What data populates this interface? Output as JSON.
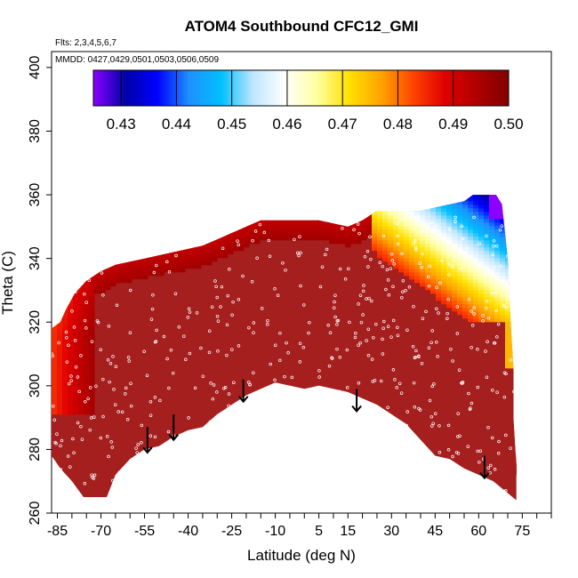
{
  "chart_data": {
    "type": "heatmap",
    "title": "ATOM4 Southbound CFC12_GMI",
    "flights_note": "Flts: 2,3,4,5,6,7",
    "dates_note": "MMDD: 0427,0429,0501,0503,0506,0509",
    "xlabel": "Latitude (deg N)",
    "ylabel": "Theta (C)",
    "xlim": [
      -87,
      85
    ],
    "ylim": [
      260,
      405
    ],
    "x_ticks": [
      -85,
      -70,
      -55,
      -40,
      -25,
      -10,
      5,
      15,
      30,
      45,
      60,
      75
    ],
    "y_ticks": [
      260,
      280,
      300,
      320,
      340,
      360,
      380,
      400
    ],
    "colorbar": {
      "min": 0.425,
      "max": 0.5,
      "tick_values": [
        0.43,
        0.44,
        0.45,
        0.46,
        0.47,
        0.48,
        0.49,
        0.5
      ],
      "tick_labels": [
        "0.43",
        "0.44",
        "0.45",
        "0.46",
        "0.47",
        "0.48",
        "0.49",
        "0.50"
      ],
      "colors": [
        "#8b00ff",
        "#0000a8",
        "#0000ff",
        "#1e90ff",
        "#00bfff",
        "#bfe6ff",
        "#ffffff",
        "#ffffa0",
        "#ffe000",
        "#ffa500",
        "#ff4500",
        "#e00000",
        "#b00000",
        "#800000"
      ]
    },
    "background_value": 0.498,
    "top_envelope": [
      [
        -87,
        318
      ],
      [
        -84,
        320
      ],
      [
        -82,
        324
      ],
      [
        -79,
        329
      ],
      [
        -75,
        333
      ],
      [
        -70,
        336
      ],
      [
        -65,
        338
      ],
      [
        -60,
        339
      ],
      [
        -55,
        340
      ],
      [
        -50,
        341
      ],
      [
        -45,
        342
      ],
      [
        -40,
        343
      ],
      [
        -35,
        344
      ],
      [
        -30,
        346
      ],
      [
        -25,
        348
      ],
      [
        -20,
        350
      ],
      [
        -15,
        352
      ],
      [
        -10,
        352
      ],
      [
        -5,
        352
      ],
      [
        0,
        352
      ],
      [
        5,
        352
      ],
      [
        10,
        351
      ],
      [
        15,
        350
      ],
      [
        20,
        352
      ],
      [
        25,
        355
      ],
      [
        30,
        355
      ],
      [
        35,
        355
      ],
      [
        40,
        355
      ],
      [
        45,
        356
      ],
      [
        50,
        357
      ],
      [
        55,
        358
      ],
      [
        58,
        360
      ],
      [
        60,
        360
      ],
      [
        62,
        360
      ],
      [
        64,
        360
      ],
      [
        66,
        360
      ],
      [
        68,
        357
      ],
      [
        70,
        340
      ],
      [
        71,
        320
      ],
      [
        72,
        305
      ],
      [
        72,
        290
      ],
      [
        73,
        275
      ],
      [
        73,
        264
      ]
    ],
    "bottom_envelope": [
      [
        73,
        264
      ],
      [
        65,
        270
      ],
      [
        60,
        272
      ],
      [
        55,
        274
      ],
      [
        50,
        277
      ],
      [
        45,
        278
      ],
      [
        40,
        283
      ],
      [
        35,
        288
      ],
      [
        30,
        291
      ],
      [
        25,
        294
      ],
      [
        20,
        296
      ],
      [
        15,
        298
      ],
      [
        10,
        299
      ],
      [
        5,
        300
      ],
      [
        0,
        299
      ],
      [
        -5,
        300
      ],
      [
        -10,
        301
      ],
      [
        -15,
        299
      ],
      [
        -20,
        297
      ],
      [
        -25,
        294
      ],
      [
        -30,
        291
      ],
      [
        -35,
        287
      ],
      [
        -40,
        286
      ],
      [
        -45,
        284
      ],
      [
        -50,
        281
      ],
      [
        -55,
        280
      ],
      [
        -60,
        277
      ],
      [
        -65,
        272
      ],
      [
        -68,
        265
      ],
      [
        -76,
        265
      ],
      [
        -80,
        270
      ],
      [
        -84,
        274
      ],
      [
        -87,
        278
      ]
    ],
    "features": [
      {
        "type": "gradient_region",
        "desc": "low values upper right",
        "points": [
          [
            25,
            355
          ],
          [
            45,
            356
          ],
          [
            55,
            358
          ],
          [
            68,
            360
          ],
          [
            70,
            340
          ],
          [
            71,
            320
          ],
          [
            60,
            330
          ],
          [
            50,
            338
          ],
          [
            40,
            345
          ],
          [
            30,
            350
          ]
        ],
        "values": [
          0.46,
          0.45,
          0.44,
          0.43,
          0.45,
          0.48,
          0.47,
          0.47,
          0.47,
          0.48
        ]
      },
      {
        "type": "low_spot",
        "x": 66,
        "y": 358,
        "value": 0.425
      },
      {
        "type": "orange_edge",
        "desc": "southern flank lower values",
        "x": [
          -87,
          -75
        ],
        "y": [
          290,
          330
        ],
        "value": 0.483
      },
      {
        "type": "orange_edge_upper",
        "desc": "upper edge band",
        "x": [
          -20,
          40
        ],
        "y": [
          348,
          354
        ],
        "value": 0.48
      }
    ],
    "arrows": [
      {
        "x": -54,
        "y_top": 287,
        "y_bottom": 279
      },
      {
        "x": -45,
        "y_top": 291,
        "y_bottom": 283
      },
      {
        "x": -21,
        "y_top": 302,
        "y_bottom": 295
      },
      {
        "x": 18,
        "y_top": 299,
        "y_bottom": 292
      },
      {
        "x": 62,
        "y_top": 278,
        "y_bottom": 271
      }
    ],
    "grid": false,
    "legend": "top-colorbar"
  }
}
